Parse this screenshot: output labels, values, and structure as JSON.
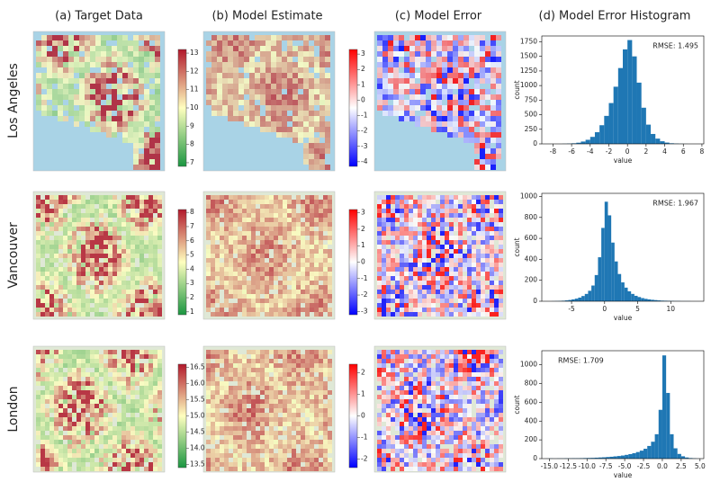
{
  "columns": [
    "(a) Target Data",
    "(b) Model Estimate",
    "(c) Model Error",
    "(d) Model Error Histogram"
  ],
  "rows": [
    "Los Angeles",
    "Vancouver",
    "London"
  ],
  "colorbars": [
    {
      "lim": [
        6.8,
        13.2
      ],
      "ticks": [
        7,
        8,
        9,
        10,
        11,
        12,
        13
      ],
      "colormap": [
        "#1a9641",
        "#ffffbf",
        "#b2182b"
      ]
    },
    {
      "lim": [
        -4.3,
        3.3
      ],
      "ticks": [
        -4,
        -3,
        -2,
        -1,
        0,
        1,
        2,
        3
      ],
      "colormap": [
        "#0000ff",
        "#ffffff",
        "#ff0000"
      ]
    },
    {
      "lim": [
        0.8,
        8.2
      ],
      "ticks": [
        1,
        2,
        3,
        4,
        5,
        6,
        7,
        8
      ],
      "colormap": [
        "#1a9641",
        "#ffffbf",
        "#b2182b"
      ]
    },
    {
      "lim": [
        -3.2,
        3.2
      ],
      "ticks": [
        -3,
        -2,
        -1,
        0,
        1,
        2,
        3
      ],
      "colormap": [
        "#0000ff",
        "#ffffff",
        "#ff0000"
      ]
    },
    {
      "lim": [
        13.4,
        16.6
      ],
      "ticks": [
        13.5,
        {
          "value": 14,
          "label": "14.0"
        },
        14.5,
        {
          "value": 15,
          "label": "15.0"
        },
        15.5,
        {
          "value": 16,
          "label": "16.0"
        },
        16.5
      ],
      "colormap": [
        "#1a9641",
        "#ffffbf",
        "#b2182b"
      ]
    },
    {
      "lim": [
        -2.4,
        2.4
      ],
      "ticks": [
        -2,
        -1,
        0,
        1,
        2
      ],
      "colormap": [
        "#0000ff",
        "#ffffff",
        "#ff0000"
      ]
    }
  ],
  "chart_data": [
    {
      "type": "histogram",
      "annotation": "RMSE: 1.495",
      "xlabel": "value",
      "ylabel": "count",
      "color": "#1f77b4",
      "bins": [
        -9,
        -8.5,
        -8,
        -7.5,
        -7,
        -6.5,
        -6,
        -5.5,
        -5,
        -4.5,
        -4,
        -3.5,
        -3,
        -2.5,
        -2,
        -1.5,
        -1,
        -0.5,
        0,
        0.5,
        1,
        1.5,
        2,
        2.5,
        3,
        3.5,
        4,
        4.5,
        5,
        5.5,
        6,
        6.5,
        7,
        7.5,
        8
      ],
      "values": [
        0,
        0,
        0,
        0,
        2,
        5,
        10,
        20,
        40,
        70,
        120,
        200,
        320,
        480,
        700,
        980,
        1300,
        1620,
        1780,
        1500,
        1050,
        620,
        330,
        170,
        90,
        45,
        22,
        10,
        5,
        2,
        1,
        0,
        0,
        0
      ],
      "xlim": [
        -9.2,
        8.2
      ],
      "xticks": [
        -8,
        -6,
        -4,
        -2,
        0,
        2,
        4,
        6,
        8
      ],
      "ylim": [
        0,
        1850
      ],
      "yticks": [
        0,
        250,
        500,
        750,
        1000,
        1250,
        1500,
        1750
      ],
      "annotation_corner": "upper right"
    },
    {
      "type": "histogram",
      "annotation": "RMSE: 1.967",
      "xlabel": "value",
      "ylabel": "count",
      "color": "#1f77b4",
      "bins": [
        -9,
        -8.5,
        -8,
        -7.5,
        -7,
        -6.5,
        -6,
        -5.5,
        -5,
        -4.5,
        -4,
        -3.5,
        -3,
        -2.5,
        -2,
        -1.5,
        -1,
        -0.5,
        0,
        0.5,
        1,
        1.5,
        2,
        2.5,
        3,
        3.5,
        4,
        4.5,
        5,
        5.5,
        6,
        6.5,
        7,
        7.5,
        8,
        8.5,
        9,
        9.5,
        10,
        10.5,
        11,
        11.5,
        12,
        12.5,
        13,
        13.5,
        14,
        14.5,
        15
      ],
      "values": [
        0,
        0,
        1,
        2,
        3,
        5,
        8,
        12,
        18,
        25,
        35,
        50,
        70,
        100,
        150,
        250,
        420,
        700,
        950,
        820,
        560,
        380,
        260,
        180,
        130,
        95,
        70,
        52,
        40,
        30,
        23,
        18,
        14,
        11,
        8,
        6,
        5,
        4,
        3,
        2,
        2,
        1,
        1,
        1,
        0,
        0,
        0,
        0
      ],
      "xlim": [
        -9.5,
        15
      ],
      "xticks": [
        -5,
        0,
        5,
        10
      ],
      "ylim": [
        0,
        1030
      ],
      "yticks": [
        0,
        200,
        400,
        600,
        800,
        1000
      ],
      "annotation_corner": "upper right"
    },
    {
      "type": "histogram",
      "annotation": "RMSE: 1.709",
      "xlabel": "value",
      "ylabel": "count",
      "color": "#1f77b4",
      "bins": [
        -15.5,
        -15,
        -14.5,
        -14,
        -13.5,
        -13,
        -12.5,
        -12,
        -11.5,
        -11,
        -10.5,
        -10,
        -9.5,
        -9,
        -8.5,
        -8,
        -7.5,
        -7,
        -6.5,
        -6,
        -5.5,
        -5,
        -4.5,
        -4,
        -3.5,
        -3,
        -2.5,
        -2,
        -1.5,
        -1,
        -0.5,
        0,
        0.5,
        1,
        1.5,
        2,
        2.5,
        3,
        3.5,
        4,
        4.5,
        5
      ],
      "values": [
        1,
        2,
        1,
        2,
        2,
        3,
        3,
        4,
        4,
        5,
        6,
        7,
        8,
        10,
        12,
        14,
        17,
        20,
        24,
        28,
        33,
        40,
        48,
        58,
        70,
        85,
        105,
        135,
        180,
        260,
        520,
        1100,
        700,
        260,
        110,
        50,
        25,
        12,
        6,
        3,
        1
      ],
      "xlim": [
        -16,
        5.5
      ],
      "xticks": [
        {
          "value": -15,
          "label": "-15.0"
        },
        -12.5,
        {
          "value": -10,
          "label": "-10.0"
        },
        -7.5,
        {
          "value": -5,
          "label": "-5.0"
        },
        -2.5,
        {
          "value": 0,
          "label": "0.0"
        },
        2.5,
        {
          "value": 5,
          "label": "5.0"
        }
      ],
      "ylim": [
        0,
        1150
      ],
      "yticks": [
        0,
        200,
        400,
        600,
        800,
        1000
      ],
      "annotation_corner": "upper left"
    }
  ]
}
